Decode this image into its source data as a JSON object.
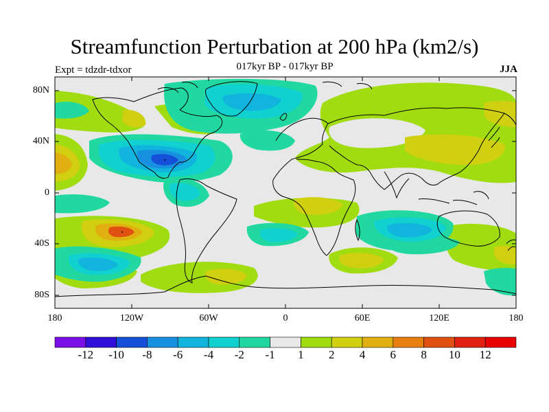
{
  "map": {
    "title": "Streamfunction Perturbation at 200 hPa (km2/s)",
    "subtitle": "017kyr BP - 017kyr BP",
    "left_label": "Expt = tdzdr-tdxor",
    "right_label": "JJA",
    "lat_ticks": [
      "80N",
      "40N",
      "0",
      "40S",
      "80S"
    ],
    "lon_ticks": [
      "180",
      "120W",
      "60W",
      "0",
      "60E",
      "120E",
      "180"
    ],
    "projection": "cylindrical equidistant",
    "variable": "streamfunction perturbation",
    "units": "km2/s",
    "season": "JJA"
  },
  "colorbar": {
    "levels": [
      "-12",
      "-10",
      "-8",
      "-6",
      "-4",
      "-2",
      "-1",
      "1",
      "2",
      "4",
      "6",
      "8",
      "10",
      "12"
    ],
    "colors": [
      "#7a10e8",
      "#3010d8",
      "#1450d8",
      "#1890e0",
      "#10b4dc",
      "#10d0d0",
      "#20d8a0",
      "#e8e8e8",
      "#a0dc10",
      "#d0d010",
      "#e0b010",
      "#e88010",
      "#e05010",
      "#e02010",
      "#e80000"
    ]
  },
  "colors": {
    "background": "#e8e8e8",
    "coastline": "#000000"
  },
  "field_regions": [
    {
      "name": "north-pacific-positive",
      "value": 2,
      "color": "#a0dc10"
    },
    {
      "name": "north-america-negative",
      "value": -4,
      "color": "#10b4dc"
    },
    {
      "name": "gulf-of-mexico-minimum",
      "value": -8,
      "color": "#1450d8"
    },
    {
      "name": "greenland-negative",
      "value": -2,
      "color": "#20d8a0"
    },
    {
      "name": "eurasia-positive",
      "value": 2,
      "color": "#a0dc10"
    },
    {
      "name": "south-pacific-maximum",
      "value": 8,
      "color": "#e05010"
    },
    {
      "name": "indian-ocean-negative",
      "value": -4,
      "color": "#10b4dc"
    },
    {
      "name": "southern-ocean-positive",
      "value": 2,
      "color": "#a0dc10"
    }
  ]
}
